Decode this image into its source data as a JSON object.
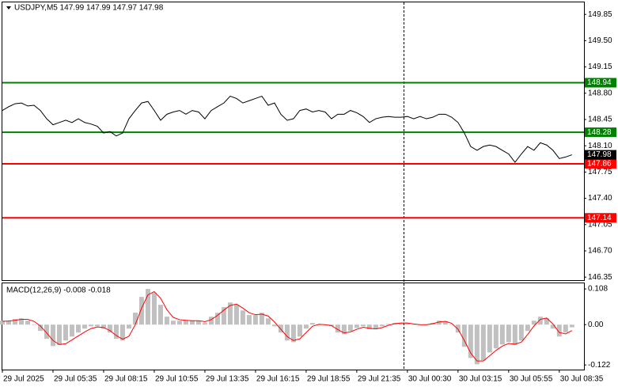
{
  "chart_data": [
    {
      "type": "line",
      "title": "USDJPY,M5  147.99 147.99 147.97 147.98",
      "color": "#000000",
      "values": [
        148.57,
        148.62,
        148.66,
        148.67,
        148.63,
        148.64,
        148.57,
        148.46,
        148.38,
        148.41,
        148.44,
        148.41,
        148.46,
        148.41,
        148.39,
        148.36,
        148.27,
        148.29,
        148.23,
        148.27,
        148.46,
        148.57,
        148.67,
        148.69,
        148.57,
        148.44,
        148.52,
        148.55,
        148.57,
        148.52,
        148.57,
        148.55,
        148.46,
        148.57,
        148.62,
        148.67,
        148.76,
        148.73,
        148.67,
        148.7,
        148.73,
        148.76,
        148.64,
        148.67,
        148.52,
        148.44,
        148.46,
        148.57,
        148.59,
        148.55,
        148.57,
        148.55,
        148.46,
        148.52,
        148.52,
        148.57,
        148.54,
        148.49,
        148.41,
        148.46,
        148.48,
        148.49,
        148.48,
        148.48,
        148.49,
        148.46,
        148.49,
        148.46,
        148.48,
        148.52,
        148.52,
        148.48,
        148.41,
        148.27,
        148.09,
        148.04,
        148.09,
        148.11,
        148.09,
        148.04,
        147.99,
        147.88,
        147.99,
        148.09,
        148.04,
        148.14,
        148.11,
        148.04,
        147.93,
        147.95,
        147.98
      ],
      "xlim": [
        0,
        91.9
      ],
      "xticks": [
        {
          "value": 0,
          "label": "29 Jul 2025"
        },
        {
          "value": 8,
          "label": "29 Jul 05:35"
        },
        {
          "value": 16,
          "label": "29 Jul 08:15"
        },
        {
          "value": 24,
          "label": "29 Jul 10:55"
        },
        {
          "value": 32,
          "label": "29 Jul 13:35"
        },
        {
          "value": 40,
          "label": "29 Jul 16:15"
        },
        {
          "value": 48,
          "label": "29 Jul 18:55"
        },
        {
          "value": 56,
          "label": "29 Jul 21:35"
        },
        {
          "value": 64,
          "label": "30 Jul 00:30"
        },
        {
          "value": 72,
          "label": "30 Jul 03:15"
        },
        {
          "value": 80,
          "label": "30 Jul 05:55"
        },
        {
          "value": 88,
          "label": "30 Jul 08:35"
        }
      ],
      "ylim": [
        146.31,
        150.01
      ],
      "yticks": [
        149.85,
        {
          "value": 149.5,
          "label": "149.50"
        },
        149.15,
        {
          "value": 148.8,
          "label": "148.80"
        },
        148.45,
        {
          "value": 148.1,
          "label": "148.10"
        },
        147.75,
        {
          "value": 147.4,
          "label": "147.40"
        },
        147.05,
        {
          "value": 146.7,
          "label": "146.70"
        },
        146.35
      ],
      "levels": [
        {
          "value": 148.94,
          "color": "#008000"
        },
        {
          "value": 148.28,
          "color": "#008000"
        },
        {
          "value": 147.86,
          "color": "#ff0000"
        },
        {
          "value": 147.14,
          "color": "#ff0000"
        }
      ]
    },
    {
      "type": "macd",
      "title": "MACD(12,26,9) -0.008 -0.018",
      "ylim": [
        -0.136,
        0.125
      ],
      "yticks": [
        0.108,
        {
          "value": 0,
          "label": "0.00"
        },
        -0.122
      ],
      "series": [
        {
          "color": "#c0c0c0",
          "values": [
            0.012,
            0.012,
            0.017,
            0.019,
            0.012,
            0,
            -0.019,
            -0.043,
            -0.065,
            -0.062,
            -0.048,
            -0.036,
            -0.024,
            -0.012,
            -0.005,
            -0.005,
            -0.012,
            -0.024,
            -0.043,
            -0.048,
            -0.012,
            0.036,
            0.084,
            0.108,
            0.096,
            0.06,
            0.024,
            0.012,
            0.012,
            0.012,
            0.012,
            0.012,
            0.005,
            0.024,
            0.036,
            0.053,
            0.067,
            0.06,
            0.043,
            0.029,
            0.029,
            0.036,
            0.019,
            -0.005,
            -0.024,
            -0.048,
            -0.053,
            -0.036,
            -0.012,
            0.005,
            0,
            0,
            -0.005,
            -0.024,
            -0.029,
            -0.019,
            -0.01,
            -0.005,
            -0.014,
            -0.014,
            -0.005,
            0.002,
            0.005,
            0.005,
            0.005,
            0,
            0,
            0,
            0.005,
            0.012,
            0.01,
            0,
            -0.024,
            -0.067,
            -0.101,
            -0.12,
            -0.108,
            -0.084,
            -0.072,
            -0.06,
            -0.053,
            -0.062,
            -0.048,
            -0.019,
            0.012,
            0.024,
            0.019,
            -0.012,
            -0.036,
            -0.024,
            -0.008
          ]
        },
        {
          "color": "#ff0000",
          "values": [
            0.01,
            0.011,
            0.013,
            0.016,
            0.016,
            0.01,
            -0.004,
            -0.025,
            -0.048,
            -0.06,
            -0.058,
            -0.046,
            -0.034,
            -0.022,
            -0.012,
            -0.007,
            -0.009,
            -0.018,
            -0.033,
            -0.044,
            -0.035,
            0.0,
            0.05,
            0.09,
            0.1,
            0.08,
            0.045,
            0.022,
            0.015,
            0.013,
            0.012,
            0.012,
            0.009,
            0.015,
            0.028,
            0.044,
            0.058,
            0.062,
            0.05,
            0.036,
            0.03,
            0.032,
            0.026,
            0.008,
            -0.014,
            -0.036,
            -0.048,
            -0.043,
            -0.024,
            -0.005,
            0.001,
            0.0,
            -0.003,
            -0.015,
            -0.025,
            -0.022,
            -0.014,
            -0.008,
            -0.011,
            -0.013,
            -0.009,
            -0.002,
            0.003,
            0.005,
            0.005,
            0.002,
            0.0,
            0.0,
            0.003,
            0.008,
            0.01,
            0.004,
            -0.014,
            -0.048,
            -0.086,
            -0.11,
            -0.11,
            -0.094,
            -0.078,
            -0.065,
            -0.057,
            -0.059,
            -0.053,
            -0.03,
            -0.004,
            0.016,
            0.02,
            0.002,
            -0.024,
            -0.028,
            -0.018
          ]
        }
      ]
    }
  ]
}
